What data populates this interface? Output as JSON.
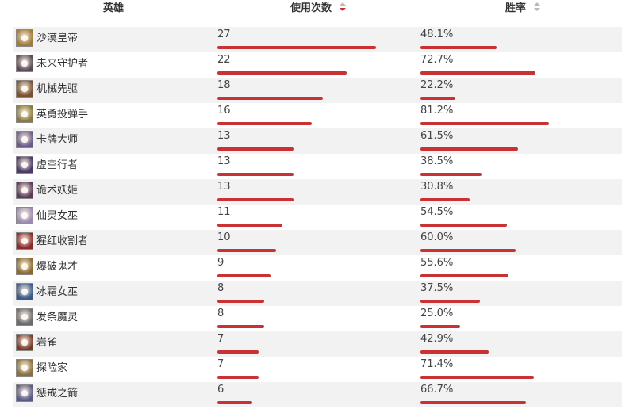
{
  "header": {
    "hero": "英雄",
    "usage": "使用次数",
    "winrate": "胜率"
  },
  "colors": {
    "bar": "#c83232",
    "row_alt": "#f2f2f2",
    "sort_active": "#c83232",
    "sort_inactive": "#bbbbbb"
  },
  "rows": [
    {
      "name": "沙漠皇帝",
      "usage": "27",
      "usage_num": 27,
      "winrate": "48.1%",
      "winrate_num": 48.1,
      "icon": "hero-portrait-icon",
      "color": "#a07a3a"
    },
    {
      "name": "未来守护者",
      "usage": "22",
      "usage_num": 22,
      "winrate": "72.7%",
      "winrate_num": 72.7,
      "icon": "hero-portrait-icon",
      "color": "#5a4a5a"
    },
    {
      "name": "机械先驱",
      "usage": "18",
      "usage_num": 18,
      "winrate": "22.2%",
      "winrate_num": 22.2,
      "icon": "hero-portrait-icon",
      "color": "#7a5030"
    },
    {
      "name": "英勇投弹手",
      "usage": "16",
      "usage_num": 16,
      "winrate": "81.2%",
      "winrate_num": 81.2,
      "icon": "hero-portrait-icon",
      "color": "#8a7a40"
    },
    {
      "name": "卡牌大师",
      "usage": "13",
      "usage_num": 13,
      "winrate": "61.5%",
      "winrate_num": 61.5,
      "icon": "hero-portrait-icon",
      "color": "#6a5a8a"
    },
    {
      "name": "虚空行者",
      "usage": "13",
      "usage_num": 13,
      "winrate": "38.5%",
      "winrate_num": 38.5,
      "icon": "hero-portrait-icon",
      "color": "#4a3a6a"
    },
    {
      "name": "诡术妖姬",
      "usage": "13",
      "usage_num": 13,
      "winrate": "30.8%",
      "winrate_num": 30.8,
      "icon": "hero-portrait-icon",
      "color": "#5a3a5a"
    },
    {
      "name": "仙灵女巫",
      "usage": "11",
      "usage_num": 11,
      "winrate": "54.5%",
      "winrate_num": 54.5,
      "icon": "hero-portrait-icon",
      "color": "#9a8ab0"
    },
    {
      "name": "猩红收割者",
      "usage": "10",
      "usage_num": 10,
      "winrate": "60.0%",
      "winrate_num": 60.0,
      "icon": "hero-portrait-icon",
      "color": "#8a2a2a"
    },
    {
      "name": "爆破鬼才",
      "usage": "9",
      "usage_num": 9,
      "winrate": "55.6%",
      "winrate_num": 55.6,
      "icon": "hero-portrait-icon",
      "color": "#8a6a30"
    },
    {
      "name": "冰霜女巫",
      "usage": "8",
      "usage_num": 8,
      "winrate": "37.5%",
      "winrate_num": 37.5,
      "icon": "hero-portrait-icon",
      "color": "#3a5a8a"
    },
    {
      "name": "发条魔灵",
      "usage": "8",
      "usage_num": 8,
      "winrate": "25.0%",
      "winrate_num": 25.0,
      "icon": "hero-portrait-icon",
      "color": "#6a6a70"
    },
    {
      "name": "岩雀",
      "usage": "7",
      "usage_num": 7,
      "winrate": "42.9%",
      "winrate_num": 42.9,
      "icon": "hero-portrait-icon",
      "color": "#7a3a2a"
    },
    {
      "name": "探险家",
      "usage": "7",
      "usage_num": 7,
      "winrate": "71.4%",
      "winrate_num": 71.4,
      "icon": "hero-portrait-icon",
      "color": "#8a7040"
    },
    {
      "name": "惩戒之箭",
      "usage": "6",
      "usage_num": 6,
      "winrate": "66.7%",
      "winrate_num": 66.7,
      "icon": "hero-portrait-icon",
      "color": "#5a5a8a"
    }
  ]
}
